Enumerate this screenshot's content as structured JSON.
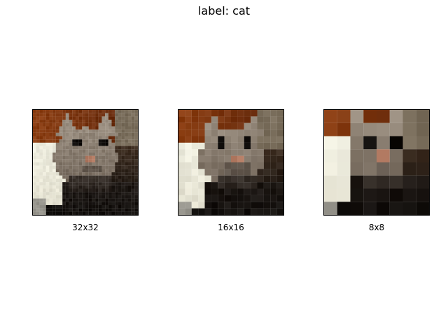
{
  "figure": {
    "title": "label: cat"
  },
  "panels": [
    {
      "label": "32x32"
    },
    {
      "label": "16x16"
    },
    {
      "label": "8x8"
    }
  ],
  "palette": {
    "background": "#ffffff",
    "wall_brown": "#8a3f12",
    "paper_white": "#f4f4e9",
    "cat_grey": "#6f6458",
    "cat_dark": "#231c16",
    "nose_pink": "#b07a62"
  }
}
